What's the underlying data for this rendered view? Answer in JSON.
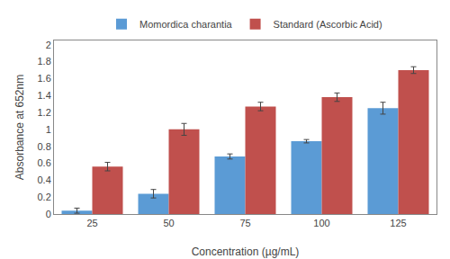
{
  "chart_data": {
    "type": "bar",
    "xlabel": "Concentration (µg/mL)",
    "ylabel": "Absorbance at 652nm",
    "categories": [
      25,
      50,
      75,
      100,
      125
    ],
    "series": [
      {
        "name": "Momordica charantia",
        "color": "#5B9BD5",
        "values": [
          0.04,
          0.24,
          0.68,
          0.86,
          1.25
        ],
        "errors": [
          0.03,
          0.05,
          0.03,
          0.02,
          0.07
        ]
      },
      {
        "name": "Standard (Ascorbic Acid)",
        "color": "#C0504D",
        "values": [
          0.56,
          1.0,
          1.27,
          1.38,
          1.7
        ],
        "errors": [
          0.05,
          0.07,
          0.05,
          0.05,
          0.04
        ]
      }
    ],
    "ylim": [
      0,
      2.05
    ],
    "yticks": [
      0,
      0.2,
      0.4,
      0.6,
      0.8,
      1,
      1.2,
      1.4,
      1.6,
      1.8,
      2
    ],
    "grid": false,
    "legend": "top"
  }
}
